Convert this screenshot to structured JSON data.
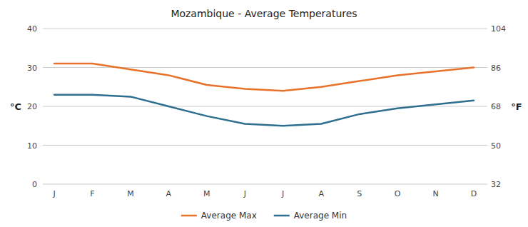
{
  "chart_data": {
    "type": "line",
    "title": "Mozambique - Average Temperatures",
    "categories": [
      "J",
      "F",
      "M",
      "A",
      "M",
      "J",
      "J",
      "A",
      "S",
      "O",
      "N",
      "D"
    ],
    "series": [
      {
        "name": "Average Max",
        "color": "#E8722A",
        "values": [
          31.0,
          31.0,
          29.5,
          28.0,
          25.5,
          24.5,
          24.0,
          25.0,
          26.5,
          28.0,
          29.0,
          30.0
        ]
      },
      {
        "name": "Average Min",
        "color": "#2E6E8E",
        "values": [
          23.0,
          23.0,
          22.5,
          20.0,
          17.5,
          15.5,
          15.0,
          15.5,
          18.0,
          19.5,
          20.5,
          21.5
        ]
      }
    ],
    "ylabel": "°C",
    "y2label": "°F",
    "ylim": [
      0,
      40
    ],
    "yticks": [
      0,
      10,
      20,
      30,
      40
    ],
    "y2lim": [
      32,
      104
    ],
    "y2ticks": [
      32,
      50,
      68,
      86,
      104
    ],
    "grid": true,
    "legend": "bottom"
  }
}
